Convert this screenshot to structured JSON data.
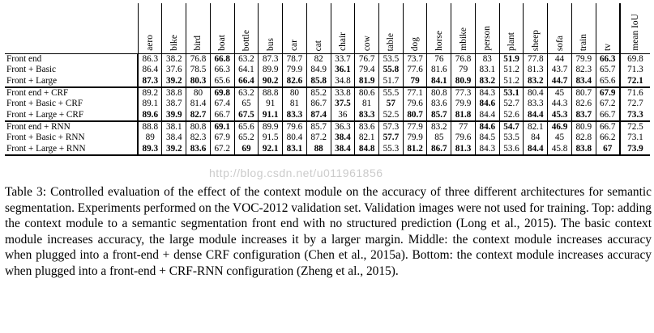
{
  "table": {
    "columns": [
      "aero",
      "bike",
      "bird",
      "boat",
      "bottle",
      "bus",
      "car",
      "cat",
      "chair",
      "cow",
      "table",
      "dog",
      "horse",
      "mbike",
      "person",
      "plant",
      "sheep",
      "sofa",
      "train",
      "tv",
      "mean IoU"
    ],
    "groups": [
      {
        "rows": [
          {
            "label": "Front end",
            "values": [
              "86.3",
              "38.2",
              "76.8",
              "66.8",
              "63.2",
              "87.3",
              "78.7",
              "82",
              "33.7",
              "76.7",
              "53.5",
              "73.7",
              "76",
              "76.8",
              "83",
              "51.9",
              "77.8",
              "44",
              "79.9",
              "66.3",
              "69.8"
            ],
            "bold": [
              3,
              15,
              19
            ]
          },
          {
            "label": "Front + Basic",
            "values": [
              "86.4",
              "37.6",
              "78.5",
              "66.3",
              "64.1",
              "89.9",
              "79.9",
              "84.9",
              "36.1",
              "79.4",
              "55.8",
              "77.6",
              "81.6",
              "79",
              "83.1",
              "51.2",
              "81.3",
              "43.7",
              "82.3",
              "65.7",
              "71.3"
            ],
            "bold": [
              8,
              10
            ]
          },
          {
            "label": "Front + Large",
            "values": [
              "87.3",
              "39.2",
              "80.3",
              "65.6",
              "66.4",
              "90.2",
              "82.6",
              "85.8",
              "34.8",
              "81.9",
              "51.7",
              "79",
              "84.1",
              "80.9",
              "83.2",
              "51.2",
              "83.2",
              "44.7",
              "83.4",
              "65.6",
              "72.1"
            ],
            "bold": [
              0,
              1,
              2,
              4,
              5,
              6,
              7,
              9,
              11,
              12,
              13,
              14,
              16,
              17,
              18,
              20
            ]
          }
        ]
      },
      {
        "rows": [
          {
            "label": "Front end + CRF",
            "values": [
              "89.2",
              "38.8",
              "80",
              "69.8",
              "63.2",
              "88.8",
              "80",
              "85.2",
              "33.8",
              "80.6",
              "55.5",
              "77.1",
              "80.8",
              "77.3",
              "84.3",
              "53.1",
              "80.4",
              "45",
              "80.7",
              "67.9",
              "71.6"
            ],
            "bold": [
              3,
              15,
              19
            ]
          },
          {
            "label": "Front + Basic + CRF",
            "values": [
              "89.1",
              "38.7",
              "81.4",
              "67.4",
              "65",
              "91",
              "81",
              "86.7",
              "37.5",
              "81",
              "57",
              "79.6",
              "83.6",
              "79.9",
              "84.6",
              "52.7",
              "83.3",
              "44.3",
              "82.6",
              "67.2",
              "72.7"
            ],
            "bold": [
              8,
              10,
              14
            ]
          },
          {
            "label": "Front + Large + CRF",
            "values": [
              "89.6",
              "39.9",
              "82.7",
              "66.7",
              "67.5",
              "91.1",
              "83.3",
              "87.4",
              "36",
              "83.3",
              "52.5",
              "80.7",
              "85.7",
              "81.8",
              "84.4",
              "52.6",
              "84.4",
              "45.3",
              "83.7",
              "66.7",
              "73.3"
            ],
            "bold": [
              0,
              1,
              2,
              4,
              5,
              6,
              7,
              9,
              11,
              12,
              13,
              16,
              17,
              18,
              20
            ]
          }
        ]
      },
      {
        "rows": [
          {
            "label": "Front end + RNN",
            "values": [
              "88.8",
              "38.1",
              "80.8",
              "69.1",
              "65.6",
              "89.9",
              "79.6",
              "85.7",
              "36.3",
              "83.6",
              "57.3",
              "77.9",
              "83.2",
              "77",
              "84.6",
              "54.7",
              "82.1",
              "46.9",
              "80.9",
              "66.7",
              "72.5"
            ],
            "bold": [
              3,
              14,
              15,
              17
            ]
          },
          {
            "label": "Front + Basic + RNN",
            "values": [
              "89",
              "38.4",
              "82.3",
              "67.9",
              "65.2",
              "91.5",
              "80.4",
              "87.2",
              "38.4",
              "82.1",
              "57.7",
              "79.9",
              "85",
              "79.6",
              "84.5",
              "53.5",
              "84",
              "45",
              "82.8",
              "66.2",
              "73.1"
            ],
            "bold": [
              8,
              10
            ]
          },
          {
            "label": "Front + Large + RNN",
            "values": [
              "89.3",
              "39.2",
              "83.6",
              "67.2",
              "69",
              "92.1",
              "83.1",
              "88",
              "38.4",
              "84.8",
              "55.3",
              "81.2",
              "86.7",
              "81.3",
              "84.3",
              "53.6",
              "84.4",
              "45.8",
              "83.8",
              "67",
              "73.9"
            ],
            "bold": [
              0,
              1,
              2,
              4,
              5,
              6,
              7,
              8,
              9,
              11,
              12,
              13,
              16,
              18,
              19,
              20
            ]
          }
        ]
      }
    ]
  },
  "watermark": "http://blog.csdn.net/u011961856",
  "caption": "Table 3: Controlled evaluation of the effect of the context module on the accuracy of three different architectures for semantic segmentation. Experiments performed on the VOC-2012 validation set. Validation images were not used for training. Top: adding the context module to a semantic segmentation front end with no structured prediction (Long et al., 2015). The basic context module increases accuracy, the large module increases it by a larger margin. Middle: the context module increases accuracy when plugged into a front-end + dense CRF configuration (Chen et al., 2015a). Bottom: the context module increases accuracy when plugged into a front-end + CRF-RNN configuration (Zheng et al., 2015)."
}
